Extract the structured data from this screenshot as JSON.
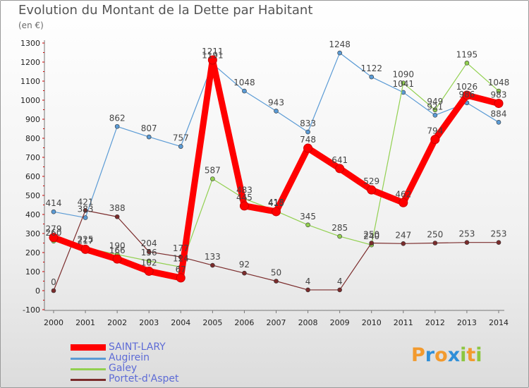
{
  "header": {
    "title": "Evolution du Montant de la Dette par Habitant",
    "subtitle": "(en €)"
  },
  "logo": {
    "letters": [
      "P",
      "r",
      "o",
      "x",
      "i",
      "t",
      "i"
    ],
    "colors": [
      "#f29a2e",
      "#2f8fd8",
      "#f29a2e",
      "#2f8fd8",
      "#8cc63f",
      "#f29a2e",
      "#8cc63f"
    ]
  },
  "chart_data": {
    "type": "line",
    "title": "Evolution du Montant de la Dette par Habitant",
    "ylabel": "(en €)",
    "x": [
      "2000",
      "2001",
      "2002",
      "2003",
      "2004",
      "2005",
      "2006",
      "2007",
      "2008",
      "2009",
      "2010",
      "2011",
      "2012",
      "2013",
      "2014"
    ],
    "ylim": [
      -100,
      1300
    ],
    "yticks": [
      -100,
      0,
      100,
      200,
      300,
      400,
      500,
      600,
      700,
      800,
      900,
      1000,
      1100,
      1200,
      1300
    ],
    "grid": false,
    "legend_position": "bottom-left",
    "series": [
      {
        "name": "SAINT-LARY",
        "color": "#ff0000",
        "values": [
          279,
          217,
          166,
          102,
          67,
          1211,
          445,
          415,
          748,
          641,
          529,
          462,
          794,
          1026,
          983
        ],
        "labels": [
          "279",
          "217",
          "166",
          "102",
          "67",
          "1211",
          "445",
          "415",
          "748",
          "641",
          "529",
          "462",
          "794",
          "1026",
          "983"
        ]
      },
      {
        "name": "Augirein",
        "color": "#5b9bd5",
        "values": [
          414,
          383,
          862,
          807,
          757,
          1191,
          1048,
          943,
          833,
          1248,
          1122,
          1041,
          921,
          986,
          884
        ],
        "labels": [
          "414",
          "383",
          "862",
          "807",
          "757",
          "1191",
          "1048",
          "943",
          "833",
          "1248",
          "1122",
          "1041",
          "921",
          "986",
          "884"
        ]
      },
      {
        "name": "Galey",
        "color": "#92d050",
        "values": [
          260,
          225,
          190,
          156,
          124,
          587,
          483,
          418,
          345,
          285,
          240,
          1090,
          949,
          1195,
          1048
        ],
        "labels": [
          "260",
          "225",
          "190",
          "156",
          "124",
          "587",
          "483",
          "418",
          "345",
          "285",
          "240",
          "1090",
          "949",
          "1195",
          "1048"
        ]
      },
      {
        "name": "Portet-d'Aspet",
        "color": "#7b2c2c",
        "values": [
          0,
          421,
          388,
          204,
          177,
          133,
          92,
          50,
          4,
          4,
          250,
          247,
          250,
          253,
          253
        ],
        "labels": [
          "0",
          "421",
          "388",
          "204",
          "177",
          "133",
          "92",
          "50",
          "4",
          "4",
          "250",
          "247",
          "250",
          "253",
          "253"
        ]
      }
    ]
  }
}
